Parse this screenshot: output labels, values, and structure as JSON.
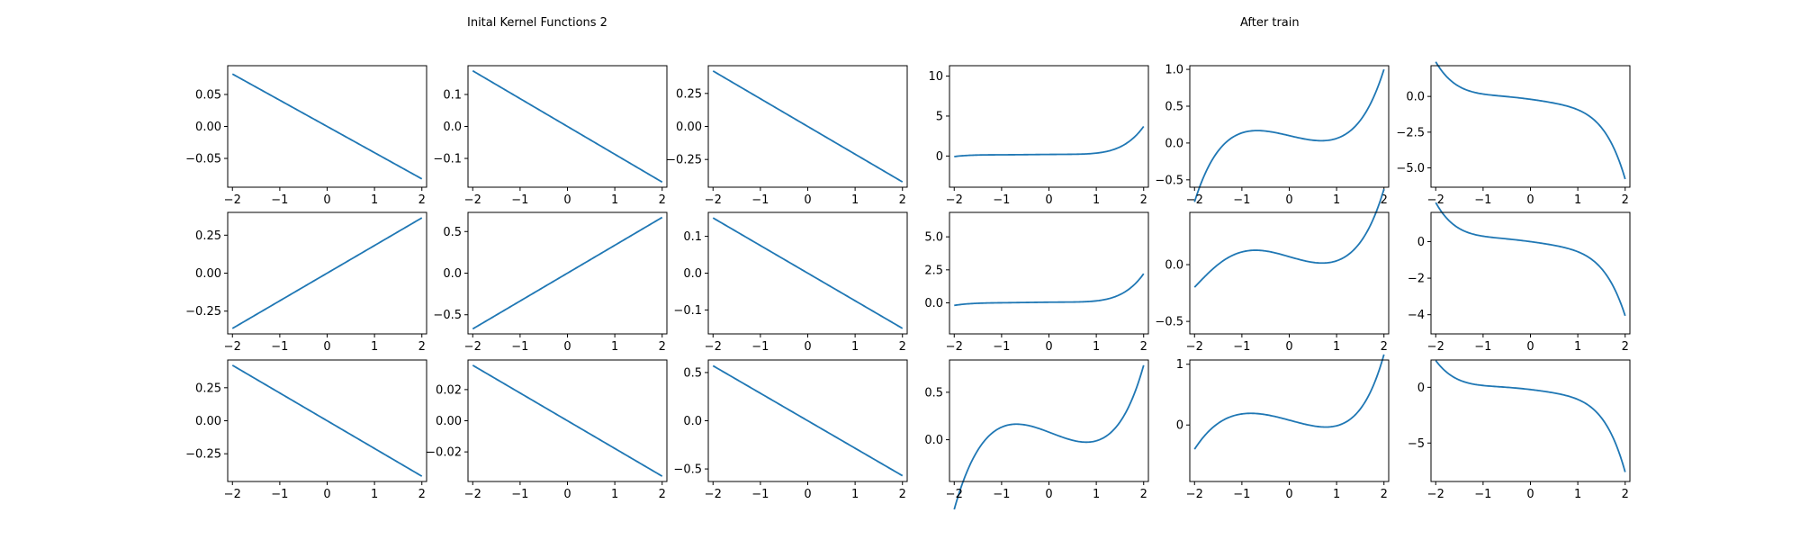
{
  "titles": {
    "left": "Inital Kernel Functions 2",
    "right": "After train"
  },
  "chart_data": [
    {
      "type": "line",
      "grid": false,
      "line_color": "#1f77b4",
      "formula": "linear",
      "coef": [
        0,
        -0.041
      ],
      "xlim": [
        -2.1,
        2.1
      ],
      "ylim": [
        -0.095,
        0.095
      ],
      "xticks": [
        -2,
        -1,
        0,
        1,
        2
      ],
      "xtick_labels": [
        "−2",
        "−1",
        "0",
        "1",
        "2"
      ],
      "yticks": [
        0.05,
        0.0,
        -0.05
      ],
      "ytick_labels": [
        "0.05",
        "0.00",
        "−0.05"
      ]
    },
    {
      "type": "line",
      "grid": false,
      "line_color": "#1f77b4",
      "formula": "linear",
      "coef": [
        0,
        -0.087
      ],
      "xlim": [
        -2.1,
        2.1
      ],
      "ylim": [
        -0.19,
        0.19
      ],
      "xticks": [
        -2,
        -1,
        0,
        1,
        2
      ],
      "xtick_labels": [
        "−2",
        "−1",
        "0",
        "1",
        "2"
      ],
      "yticks": [
        0.1,
        0.0,
        -0.1
      ],
      "ytick_labels": [
        "0.1",
        "0.0",
        "−0.1"
      ]
    },
    {
      "type": "line",
      "grid": false,
      "line_color": "#1f77b4",
      "formula": "linear",
      "coef": [
        0,
        -0.21
      ],
      "xlim": [
        -2.1,
        2.1
      ],
      "ylim": [
        -0.46,
        0.46
      ],
      "xticks": [
        -2,
        -1,
        0,
        1,
        2
      ],
      "xtick_labels": [
        "−2",
        "−1",
        "0",
        "1",
        "2"
      ],
      "yticks": [
        0.25,
        0.0,
        -0.25
      ],
      "ytick_labels": [
        "0.25",
        "0.00",
        "−0.25"
      ]
    },
    {
      "type": "line",
      "grid": false,
      "line_color": "#1f77b4",
      "formula": "poly",
      "coef": [
        0.2,
        0.04,
        -0.0363,
        0.0106,
        0.0888,
        0.0538,
        0.0053
      ],
      "xlim": [
        -2.1,
        2.1
      ],
      "ylim": [
        -3.9,
        11.3
      ],
      "xticks": [
        -2,
        -1,
        0,
        1,
        2
      ],
      "xtick_labels": [
        "−2",
        "−1",
        "0",
        "1",
        "2"
      ],
      "yticks": [
        10,
        5,
        0
      ],
      "ytick_labels": [
        "10",
        "5",
        "0"
      ]
    },
    {
      "type": "line",
      "grid": false,
      "line_color": "#1f77b4",
      "formula": "poly",
      "coef": [
        0.1,
        -0.15,
        0,
        0.1,
        0,
        0.0125,
        0
      ],
      "xlim": [
        -2.1,
        2.1
      ],
      "ylim": [
        -0.6,
        1.05
      ],
      "xticks": [
        -2,
        -1,
        0,
        1,
        2
      ],
      "xtick_labels": [
        "−2",
        "−1",
        "0",
        "1",
        "2"
      ],
      "yticks": [
        1.0,
        0.5,
        0.0,
        -0.5
      ],
      "ytick_labels": [
        "1.0",
        "0.5",
        "0.0",
        "−0.5"
      ]
    },
    {
      "type": "line",
      "grid": false,
      "line_color": "#1f77b4",
      "formula": "poly",
      "coef": [
        -0.2,
        -0.45,
        -0.15,
        0,
        -0.025,
        -0.1,
        -0.0075
      ],
      "xlim": [
        -2.1,
        2.1
      ],
      "ylim": [
        -6.35,
        2.15
      ],
      "xticks": [
        -2,
        -1,
        0,
        1,
        2
      ],
      "xtick_labels": [
        "−2",
        "−1",
        "0",
        "1",
        "2"
      ],
      "yticks": [
        0.0,
        -2.5,
        -5.0
      ],
      "ytick_labels": [
        "0.0",
        "−2.5",
        "−5.0"
      ]
    },
    {
      "type": "line",
      "grid": false,
      "line_color": "#1f77b4",
      "formula": "linear",
      "coef": [
        0,
        0.182
      ],
      "xlim": [
        -2.1,
        2.1
      ],
      "ylim": [
        -0.4,
        0.4
      ],
      "xticks": [
        -2,
        -1,
        0,
        1,
        2
      ],
      "xtick_labels": [
        "−2",
        "−1",
        "0",
        "1",
        "2"
      ],
      "yticks": [
        0.25,
        0.0,
        -0.25
      ],
      "ytick_labels": [
        "0.25",
        "0.00",
        "−0.25"
      ]
    },
    {
      "type": "line",
      "grid": false,
      "line_color": "#1f77b4",
      "formula": "linear",
      "coef": [
        0,
        0.335
      ],
      "xlim": [
        -2.1,
        2.1
      ],
      "ylim": [
        -0.73,
        0.73
      ],
      "xticks": [
        -2,
        -1,
        0,
        1,
        2
      ],
      "xtick_labels": [
        "−2",
        "−1",
        "0",
        "1",
        "2"
      ],
      "yticks": [
        0.5,
        0.0,
        -0.5
      ],
      "ytick_labels": [
        "0.5",
        "0.0",
        "−0.5"
      ]
    },
    {
      "type": "line",
      "grid": false,
      "line_color": "#1f77b4",
      "formula": "linear",
      "coef": [
        0,
        -0.075
      ],
      "xlim": [
        -2.1,
        2.1
      ],
      "ylim": [
        -0.165,
        0.165
      ],
      "xticks": [
        -2,
        -1,
        0,
        1,
        2
      ],
      "xtick_labels": [
        "−2",
        "−1",
        "0",
        "1",
        "2"
      ],
      "yticks": [
        0.1,
        0.0,
        -0.1
      ],
      "ytick_labels": [
        "0.1",
        "0.0",
        "−0.1"
      ]
    },
    {
      "type": "line",
      "grid": false,
      "line_color": "#1f77b4",
      "formula": "poly",
      "coef": [
        0.05,
        0.03,
        -0.0288,
        0.0082,
        0.0543,
        0.0336,
        0.0032
      ],
      "xlim": [
        -2.1,
        2.1
      ],
      "ylim": [
        -2.35,
        6.85
      ],
      "xticks": [
        -2,
        -1,
        0,
        1,
        2
      ],
      "xtick_labels": [
        "−2",
        "−1",
        "0",
        "1",
        "2"
      ],
      "yticks": [
        5.0,
        2.5,
        0.0
      ],
      "ytick_labels": [
        "5.0",
        "2.5",
        "0.0"
      ]
    },
    {
      "type": "line",
      "grid": false,
      "line_color": "#1f77b4",
      "formula": "poly",
      "coef": [
        0.07,
        -0.12,
        0,
        0.08,
        0.0002,
        0.001,
        0.0025
      ],
      "xlim": [
        -2.1,
        2.1
      ],
      "ylim": [
        -0.61,
        0.46
      ],
      "xticks": [
        -2,
        -1,
        0,
        1,
        2
      ],
      "xtick_labels": [
        "−2",
        "−1",
        "0",
        "1",
        "2"
      ],
      "yticks": [
        0.0,
        -0.5
      ],
      "ytick_labels": [
        "0.0",
        "−0.5"
      ]
    },
    {
      "type": "line",
      "grid": false,
      "line_color": "#1f77b4",
      "formula": "poly",
      "coef": [
        0,
        -0.35,
        -0.1,
        0,
        -0.025,
        -0.075,
        -0.0025
      ],
      "xlim": [
        -2.1,
        2.1
      ],
      "ylim": [
        -5.05,
        1.6
      ],
      "xticks": [
        -2,
        -1,
        0,
        1,
        2
      ],
      "xtick_labels": [
        "−2",
        "−1",
        "0",
        "1",
        "2"
      ],
      "yticks": [
        0,
        -2,
        -4
      ],
      "ytick_labels": [
        "0",
        "−2",
        "−4"
      ]
    },
    {
      "type": "line",
      "grid": false,
      "line_color": "#1f77b4",
      "formula": "linear",
      "coef": [
        0,
        -0.21
      ],
      "xlim": [
        -2.1,
        2.1
      ],
      "ylim": [
        -0.46,
        0.46
      ],
      "xticks": [
        -2,
        -1,
        0,
        1,
        2
      ],
      "xtick_labels": [
        "−2",
        "−1",
        "0",
        "1",
        "2"
      ],
      "yticks": [
        0.25,
        0.0,
        -0.25
      ],
      "ytick_labels": [
        "0.25",
        "0.00",
        "−0.25"
      ]
    },
    {
      "type": "line",
      "grid": false,
      "line_color": "#1f77b4",
      "formula": "linear",
      "coef": [
        0,
        -0.0178
      ],
      "xlim": [
        -2.1,
        2.1
      ],
      "ylim": [
        -0.039,
        0.039
      ],
      "xticks": [
        -2,
        -1,
        0,
        1,
        2
      ],
      "xtick_labels": [
        "−2",
        "−1",
        "0",
        "1",
        "2"
      ],
      "yticks": [
        0.02,
        0.0,
        -0.02
      ],
      "ytick_labels": [
        "0.02",
        "0.00",
        "−0.02"
      ]
    },
    {
      "type": "line",
      "grid": false,
      "line_color": "#1f77b4",
      "formula": "linear",
      "coef": [
        0,
        -0.285
      ],
      "xlim": [
        -2.1,
        2.1
      ],
      "ylim": [
        -0.63,
        0.63
      ],
      "xticks": [
        -2,
        -1,
        0,
        1,
        2
      ],
      "xtick_labels": [
        "−2",
        "−1",
        "0",
        "1",
        "2"
      ],
      "yticks": [
        0.5,
        0.0,
        -0.5
      ],
      "ytick_labels": [
        "0.5",
        "0.0",
        "−0.5"
      ]
    },
    {
      "type": "line",
      "grid": false,
      "line_color": "#1f77b4",
      "formula": "poly",
      "coef": [
        0.08,
        -0.19,
        -0.02,
        0.11,
        0,
        0.0081,
        0.0004
      ],
      "xlim": [
        -2.1,
        2.1
      ],
      "ylim": [
        -0.44,
        0.84
      ],
      "xticks": [
        -2,
        -1,
        0,
        1,
        2
      ],
      "xtick_labels": [
        "−2",
        "−1",
        "0",
        "1",
        "2"
      ],
      "yticks": [
        0.5,
        0.0
      ],
      "ytick_labels": [
        "0.5",
        "0.0"
      ]
    },
    {
      "type": "line",
      "grid": false,
      "line_color": "#1f77b4",
      "formula": "poly",
      "coef": [
        0.08,
        -0.21,
        -0.01,
        0.1,
        0.0125,
        0.0125,
        0.0022
      ],
      "xlim": [
        -2.1,
        2.1
      ],
      "ylim": [
        -0.93,
        1.07
      ],
      "xticks": [
        -2,
        -1,
        0,
        1,
        2
      ],
      "xtick_labels": [
        "−2",
        "−1",
        "0",
        "1",
        "2"
      ],
      "yticks": [
        1,
        0
      ],
      "ytick_labels": [
        "1",
        "0"
      ]
    },
    {
      "type": "line",
      "grid": false,
      "line_color": "#1f77b4",
      "formula": "poly",
      "coef": [
        -0.2,
        -0.5,
        -0.2,
        0,
        -0.05,
        -0.125,
        -0.0125
      ],
      "xlim": [
        -2.1,
        2.1
      ],
      "ylim": [
        -8.45,
        2.45
      ],
      "xticks": [
        -2,
        -1,
        0,
        1,
        2
      ],
      "xtick_labels": [
        "−2",
        "−1",
        "0",
        "1",
        "2"
      ],
      "yticks": [
        0,
        -5
      ],
      "ytick_labels": [
        "0",
        "−5"
      ]
    }
  ]
}
